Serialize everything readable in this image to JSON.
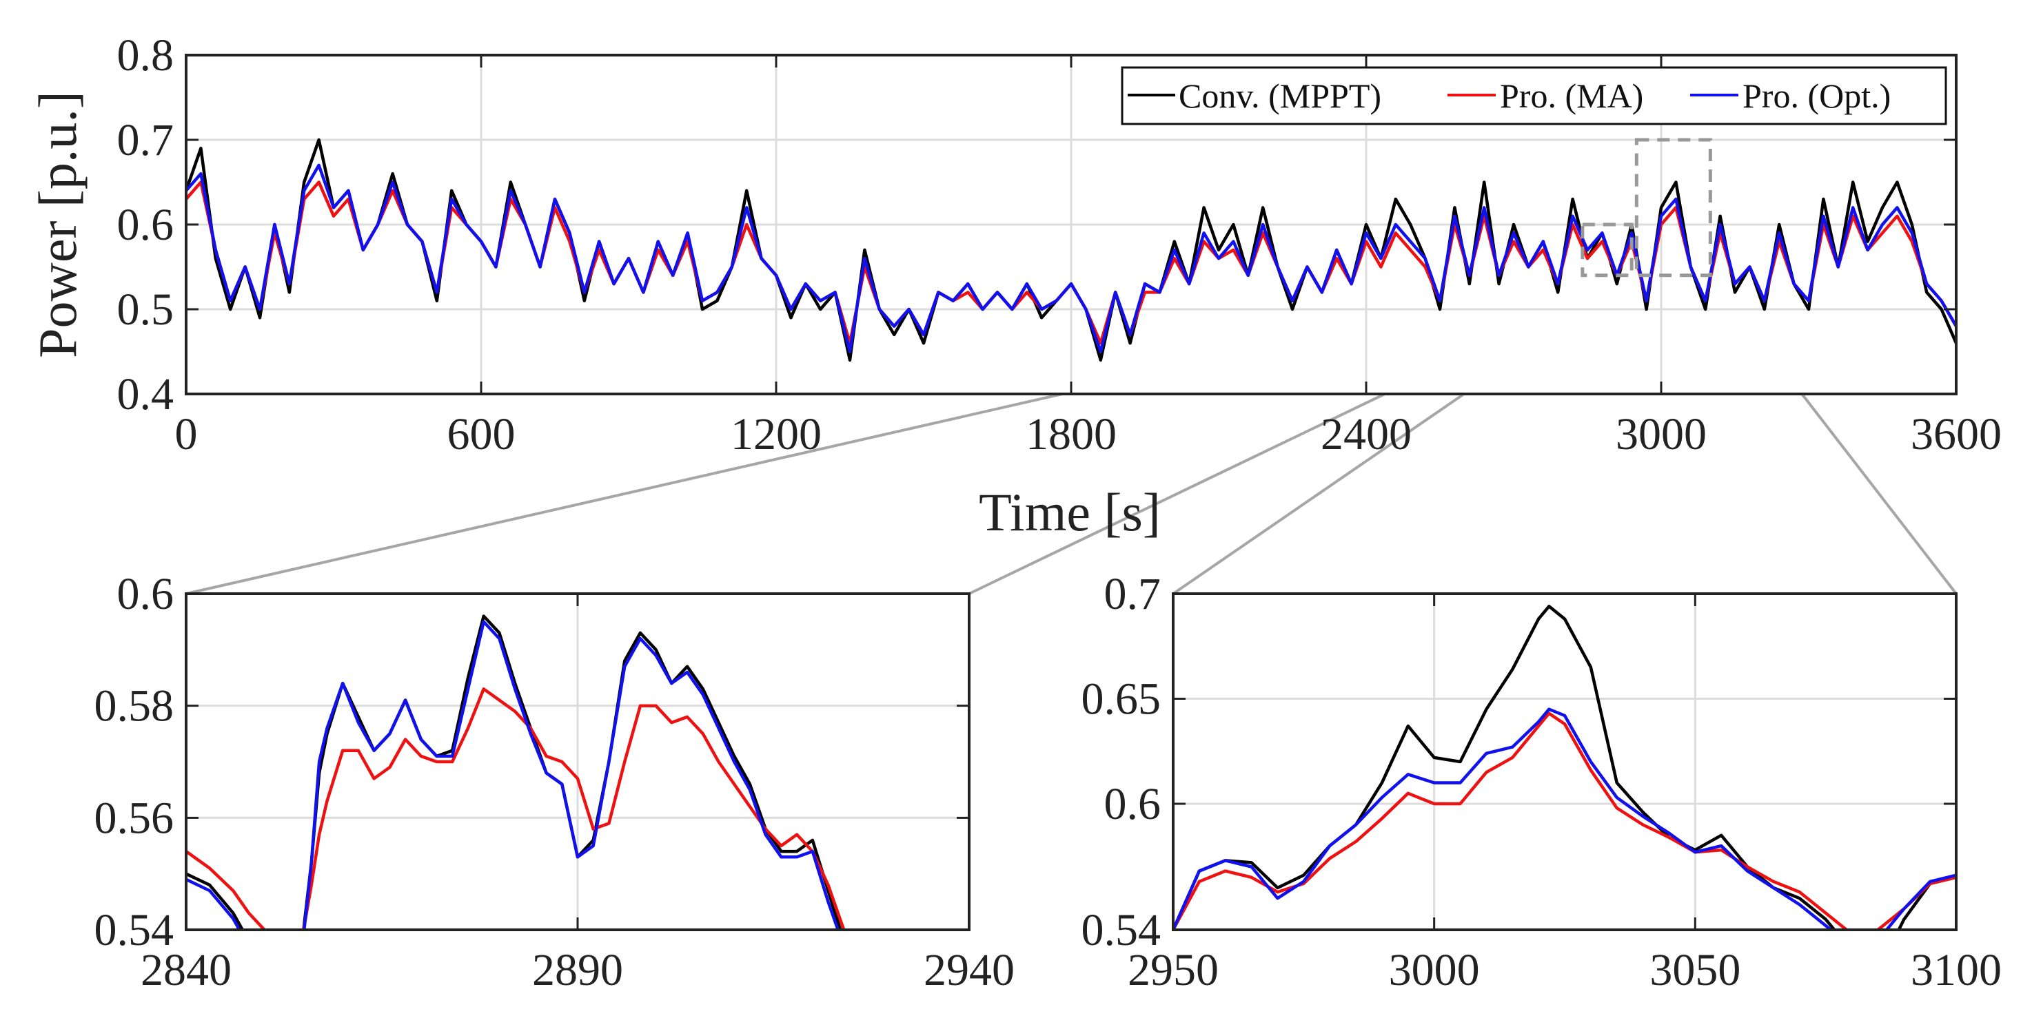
{
  "chart_data": [
    {
      "id": "main",
      "type": "line",
      "xlabel": "Time [s]",
      "ylabel": "Power [p.u.]",
      "xlim": [
        0,
        3600
      ],
      "ylim": [
        0.4,
        0.8
      ],
      "xticks": [
        0,
        600,
        1200,
        1800,
        2400,
        3000,
        3600
      ],
      "yticks": [
        0.4,
        0.5,
        0.6,
        0.7,
        0.8
      ],
      "ytick_labels": [
        "0.4",
        "0.5",
        "0.6",
        "0.7",
        "0.8"
      ],
      "grid": true,
      "legend_position": "top-right",
      "zoom_boxes": [
        {
          "xlim": [
            2840,
            2940
          ],
          "ylim": [
            0.54,
            0.6
          ]
        },
        {
          "xlim": [
            2950,
            3100
          ],
          "ylim": [
            0.54,
            0.7
          ]
        }
      ],
      "x": [
        0,
        30,
        60,
        90,
        120,
        150,
        180,
        210,
        240,
        270,
        300,
        330,
        360,
        390,
        420,
        450,
        480,
        510,
        540,
        570,
        600,
        630,
        660,
        690,
        720,
        750,
        780,
        810,
        840,
        870,
        900,
        930,
        960,
        990,
        1020,
        1050,
        1080,
        1110,
        1140,
        1170,
        1200,
        1230,
        1260,
        1290,
        1320,
        1350,
        1380,
        1410,
        1440,
        1470,
        1500,
        1530,
        1560,
        1590,
        1620,
        1650,
        1680,
        1710,
        1740,
        1770,
        1800,
        1830,
        1860,
        1890,
        1920,
        1950,
        1980,
        2010,
        2040,
        2070,
        2100,
        2130,
        2160,
        2190,
        2220,
        2250,
        2280,
        2310,
        2340,
        2370,
        2400,
        2430,
        2460,
        2490,
        2520,
        2550,
        2580,
        2610,
        2640,
        2670,
        2700,
        2730,
        2760,
        2790,
        2820,
        2850,
        2880,
        2910,
        2940,
        2970,
        3000,
        3030,
        3060,
        3090,
        3120,
        3150,
        3180,
        3210,
        3240,
        3270,
        3300,
        3330,
        3360,
        3390,
        3420,
        3450,
        3480,
        3510,
        3540,
        3570,
        3600
      ],
      "series": [
        {
          "name": "Conv. (MPPT)",
          "color": "#000000",
          "values": [
            0.64,
            0.69,
            0.56,
            0.5,
            0.55,
            0.49,
            0.6,
            0.52,
            0.65,
            0.7,
            0.62,
            0.64,
            0.57,
            0.6,
            0.66,
            0.6,
            0.58,
            0.51,
            0.64,
            0.6,
            0.58,
            0.55,
            0.65,
            0.6,
            0.55,
            0.63,
            0.59,
            0.51,
            0.58,
            0.53,
            0.56,
            0.52,
            0.58,
            0.54,
            0.59,
            0.5,
            0.51,
            0.55,
            0.64,
            0.56,
            0.54,
            0.49,
            0.53,
            0.5,
            0.52,
            0.44,
            0.57,
            0.5,
            0.47,
            0.5,
            0.46,
            0.52,
            0.51,
            0.53,
            0.5,
            0.52,
            0.5,
            0.53,
            0.49,
            0.51,
            0.53,
            0.5,
            0.44,
            0.52,
            0.46,
            0.53,
            0.52,
            0.58,
            0.53,
            0.62,
            0.57,
            0.6,
            0.54,
            0.62,
            0.55,
            0.5,
            0.55,
            0.52,
            0.57,
            0.53,
            0.6,
            0.56,
            0.63,
            0.6,
            0.56,
            0.5,
            0.62,
            0.53,
            0.65,
            0.53,
            0.6,
            0.55,
            0.58,
            0.52,
            0.63,
            0.56,
            0.59,
            0.53,
            0.6,
            0.5,
            0.62,
            0.65,
            0.55,
            0.5,
            0.61,
            0.52,
            0.55,
            0.5,
            0.6,
            0.53,
            0.5,
            0.63,
            0.55,
            0.65,
            0.58,
            0.62,
            0.65,
            0.6,
            0.52,
            0.5,
            0.46
          ]
        },
        {
          "name": "Pro. (MA)",
          "color": "#ee1111",
          "values": [
            0.63,
            0.65,
            0.57,
            0.51,
            0.55,
            0.5,
            0.59,
            0.53,
            0.63,
            0.65,
            0.61,
            0.63,
            0.57,
            0.6,
            0.64,
            0.6,
            0.58,
            0.52,
            0.62,
            0.6,
            0.58,
            0.55,
            0.63,
            0.6,
            0.55,
            0.62,
            0.58,
            0.52,
            0.57,
            0.53,
            0.56,
            0.52,
            0.57,
            0.54,
            0.58,
            0.51,
            0.52,
            0.55,
            0.6,
            0.56,
            0.54,
            0.5,
            0.53,
            0.51,
            0.52,
            0.46,
            0.55,
            0.5,
            0.48,
            0.5,
            0.47,
            0.52,
            0.51,
            0.52,
            0.5,
            0.52,
            0.5,
            0.52,
            0.5,
            0.51,
            0.53,
            0.5,
            0.46,
            0.52,
            0.47,
            0.52,
            0.52,
            0.56,
            0.53,
            0.58,
            0.56,
            0.57,
            0.54,
            0.59,
            0.55,
            0.51,
            0.55,
            0.52,
            0.56,
            0.53,
            0.58,
            0.55,
            0.59,
            0.57,
            0.55,
            0.51,
            0.6,
            0.54,
            0.61,
            0.54,
            0.58,
            0.55,
            0.57,
            0.53,
            0.6,
            0.56,
            0.58,
            0.54,
            0.58,
            0.51,
            0.6,
            0.62,
            0.55,
            0.51,
            0.59,
            0.53,
            0.55,
            0.51,
            0.58,
            0.53,
            0.51,
            0.6,
            0.55,
            0.61,
            0.57,
            0.59,
            0.61,
            0.58,
            0.53,
            0.51,
            0.48
          ]
        },
        {
          "name": "Pro. (Opt.)",
          "color": "#1111ee",
          "values": [
            0.64,
            0.66,
            0.57,
            0.51,
            0.55,
            0.5,
            0.6,
            0.53,
            0.64,
            0.67,
            0.62,
            0.64,
            0.57,
            0.6,
            0.65,
            0.6,
            0.58,
            0.52,
            0.63,
            0.6,
            0.58,
            0.55,
            0.64,
            0.6,
            0.55,
            0.63,
            0.59,
            0.52,
            0.58,
            0.53,
            0.56,
            0.52,
            0.58,
            0.54,
            0.59,
            0.51,
            0.52,
            0.55,
            0.62,
            0.56,
            0.54,
            0.5,
            0.53,
            0.51,
            0.52,
            0.45,
            0.56,
            0.5,
            0.48,
            0.5,
            0.47,
            0.52,
            0.51,
            0.53,
            0.5,
            0.52,
            0.5,
            0.53,
            0.5,
            0.51,
            0.53,
            0.5,
            0.45,
            0.52,
            0.47,
            0.53,
            0.52,
            0.57,
            0.53,
            0.59,
            0.56,
            0.58,
            0.54,
            0.6,
            0.55,
            0.51,
            0.55,
            0.52,
            0.57,
            0.53,
            0.59,
            0.56,
            0.6,
            0.58,
            0.56,
            0.51,
            0.61,
            0.54,
            0.62,
            0.54,
            0.59,
            0.55,
            0.58,
            0.53,
            0.61,
            0.57,
            0.59,
            0.54,
            0.59,
            0.51,
            0.61,
            0.63,
            0.55,
            0.51,
            0.6,
            0.53,
            0.55,
            0.51,
            0.59,
            0.53,
            0.51,
            0.61,
            0.55,
            0.62,
            0.57,
            0.6,
            0.62,
            0.59,
            0.53,
            0.51,
            0.48
          ]
        }
      ]
    },
    {
      "id": "zoom1",
      "type": "line",
      "xlim": [
        2840,
        2940
      ],
      "ylim": [
        0.54,
        0.6
      ],
      "xticks": [
        2840,
        2890,
        2940
      ],
      "yticks": [
        0.54,
        0.56,
        0.58,
        0.6
      ],
      "ytick_labels": [
        "0.54",
        "0.56",
        "0.58",
        "0.6"
      ],
      "grid": true,
      "x": [
        2840,
        2843,
        2846,
        2848,
        2850,
        2852,
        2854,
        2855,
        2856,
        2857,
        2858,
        2860,
        2862,
        2864,
        2866,
        2868,
        2870,
        2872,
        2874,
        2876,
        2878,
        2880,
        2882,
        2884,
        2886,
        2888,
        2890,
        2892,
        2894,
        2896,
        2898,
        2900,
        2902,
        2904,
        2906,
        2908,
        2910,
        2912,
        2914,
        2916,
        2918,
        2920,
        2922,
        2924,
        2926
      ],
      "series": [
        {
          "name": "Conv. (MPPT)",
          "color": "#000000",
          "values": [
            0.55,
            0.548,
            0.543,
            0.538,
            0.535,
            0.532,
            0.535,
            0.54,
            0.552,
            0.568,
            0.575,
            0.584,
            0.578,
            0.572,
            0.575,
            0.581,
            0.574,
            0.571,
            0.572,
            0.585,
            0.596,
            0.593,
            0.584,
            0.576,
            0.568,
            0.566,
            0.553,
            0.556,
            0.57,
            0.588,
            0.593,
            0.59,
            0.584,
            0.587,
            0.583,
            0.577,
            0.571,
            0.566,
            0.558,
            0.554,
            0.554,
            0.556,
            0.547,
            0.538,
            0.534
          ]
        },
        {
          "name": "Pro. (MA)",
          "color": "#ee1111",
          "values": [
            0.554,
            0.551,
            0.547,
            0.543,
            0.54,
            0.537,
            0.537,
            0.54,
            0.548,
            0.557,
            0.563,
            0.572,
            0.572,
            0.567,
            0.569,
            0.574,
            0.571,
            0.57,
            0.57,
            0.576,
            0.583,
            0.581,
            0.579,
            0.576,
            0.571,
            0.57,
            0.567,
            0.558,
            0.559,
            0.57,
            0.58,
            0.58,
            0.577,
            0.578,
            0.575,
            0.57,
            0.566,
            0.562,
            0.558,
            0.555,
            0.557,
            0.554,
            0.548,
            0.54,
            0.535
          ]
        },
        {
          "name": "Pro. (Opt.)",
          "color": "#1111ee",
          "values": [
            0.549,
            0.547,
            0.542,
            0.537,
            0.534,
            0.531,
            0.534,
            0.539,
            0.552,
            0.57,
            0.576,
            0.584,
            0.577,
            0.572,
            0.575,
            0.581,
            0.574,
            0.571,
            0.571,
            0.583,
            0.595,
            0.592,
            0.583,
            0.575,
            0.568,
            0.566,
            0.553,
            0.555,
            0.57,
            0.587,
            0.592,
            0.589,
            0.584,
            0.586,
            0.582,
            0.576,
            0.57,
            0.565,
            0.557,
            0.553,
            0.553,
            0.554,
            0.545,
            0.537,
            0.533
          ]
        }
      ]
    },
    {
      "id": "zoom2",
      "type": "line",
      "xlim": [
        2950,
        3100
      ],
      "ylim": [
        0.54,
        0.7
      ],
      "xticks": [
        2950,
        3000,
        3050,
        3100
      ],
      "yticks": [
        0.54,
        0.6,
        0.65,
        0.7
      ],
      "ytick_labels": [
        "0.54",
        "0.6",
        "0.65",
        "0.7"
      ],
      "grid": true,
      "x": [
        2950,
        2955,
        2960,
        2965,
        2970,
        2975,
        2980,
        2985,
        2990,
        2995,
        3000,
        3005,
        3010,
        3015,
        3020,
        3022,
        3025,
        3030,
        3035,
        3040,
        3045,
        3050,
        3055,
        3060,
        3065,
        3070,
        3075,
        3080,
        3085,
        3090,
        3095,
        3100
      ],
      "series": [
        {
          "name": "Conv. (MPPT)",
          "color": "#000000",
          "values": [
            0.54,
            0.568,
            0.573,
            0.572,
            0.56,
            0.566,
            0.58,
            0.59,
            0.61,
            0.637,
            0.622,
            0.62,
            0.645,
            0.664,
            0.688,
            0.694,
            0.688,
            0.665,
            0.61,
            0.596,
            0.584,
            0.578,
            0.585,
            0.57,
            0.56,
            0.555,
            0.545,
            0.53,
            0.52,
            0.545,
            0.562,
            0.565
          ]
        },
        {
          "name": "Pro. (MA)",
          "color": "#ee1111",
          "values": [
            0.54,
            0.563,
            0.568,
            0.565,
            0.558,
            0.562,
            0.574,
            0.582,
            0.593,
            0.605,
            0.6,
            0.6,
            0.615,
            0.622,
            0.637,
            0.643,
            0.638,
            0.616,
            0.598,
            0.59,
            0.584,
            0.577,
            0.578,
            0.57,
            0.563,
            0.558,
            0.548,
            0.538,
            0.54,
            0.55,
            0.562,
            0.565
          ]
        },
        {
          "name": "Pro. (Opt.)",
          "color": "#1111ee",
          "values": [
            0.54,
            0.568,
            0.573,
            0.57,
            0.555,
            0.563,
            0.58,
            0.59,
            0.603,
            0.614,
            0.61,
            0.61,
            0.624,
            0.627,
            0.639,
            0.645,
            0.642,
            0.62,
            0.603,
            0.594,
            0.586,
            0.577,
            0.58,
            0.568,
            0.56,
            0.552,
            0.542,
            0.532,
            0.535,
            0.55,
            0.563,
            0.566
          ]
        }
      ]
    }
  ]
}
